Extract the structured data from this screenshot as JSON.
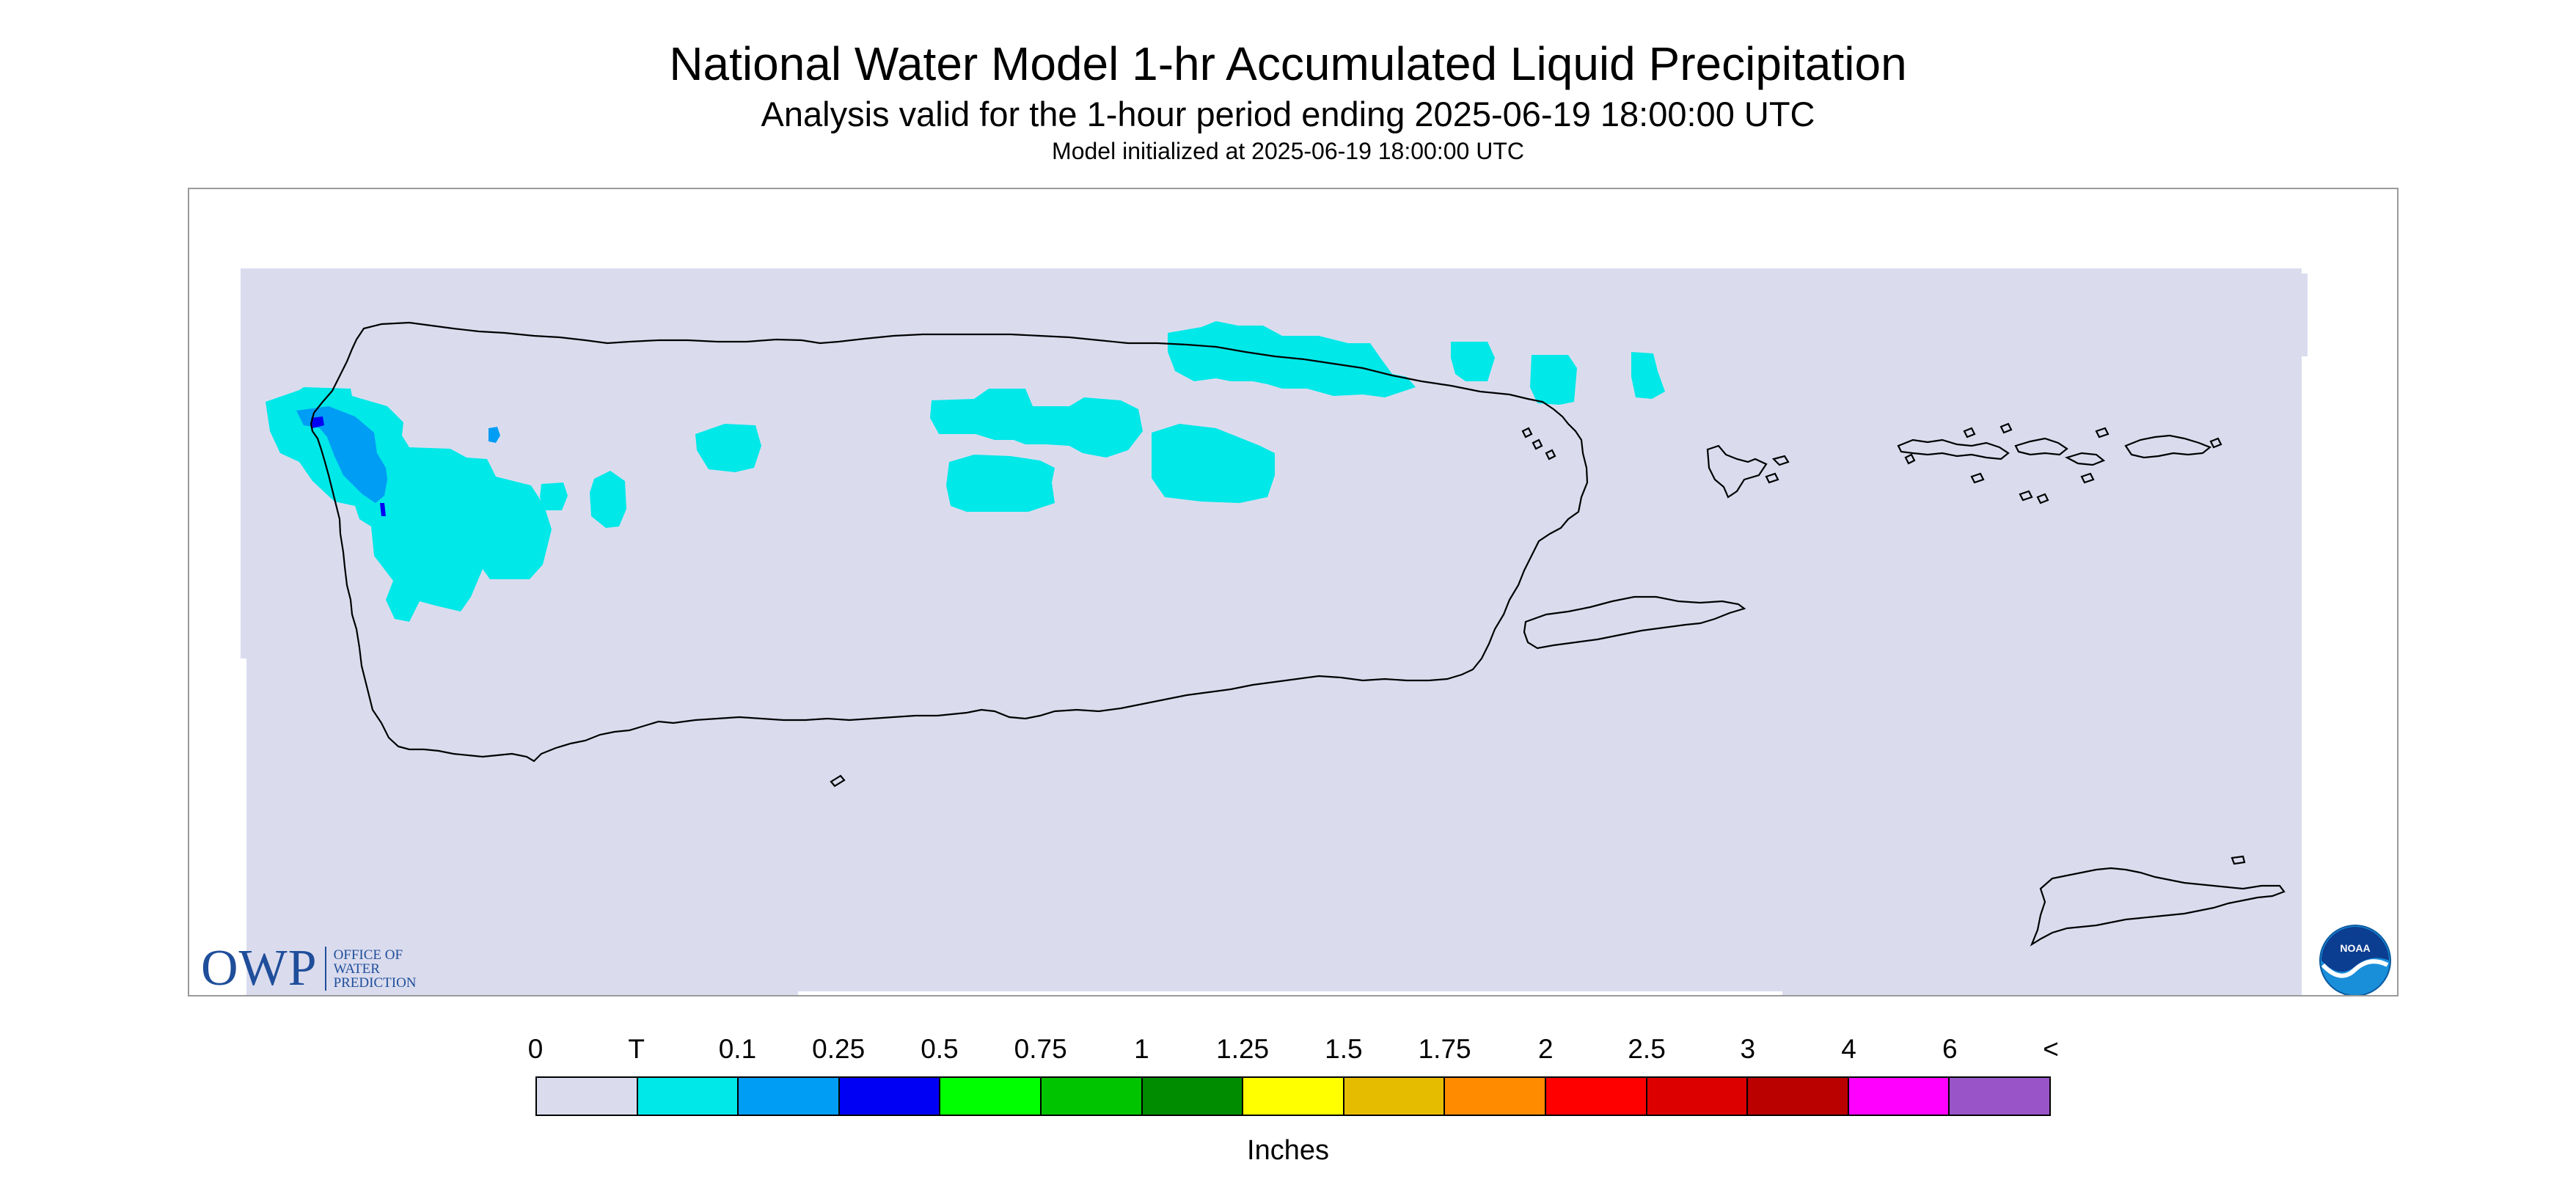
{
  "header": {
    "title": "National Water Model 1-hr Accumulated Liquid Precipitation",
    "subtitle": "Analysis valid for the 1-hour period ending 2025-06-19 18:00:00 UTC",
    "init_line": "Model initialized at 2025-06-19 18:00:00 UTC"
  },
  "map": {
    "background_color": "#dadcee",
    "coastline_color": "#000000",
    "region_shown": "Puerto Rico and U.S. Virgin Islands",
    "precip_cells": [
      {
        "category": "T"
      },
      {
        "category": "T"
      },
      {
        "category": "T"
      },
      {
        "category": "T"
      },
      {
        "category": "0.1"
      },
      {
        "category": "0.25"
      }
    ]
  },
  "logos": {
    "owp_mark": "OWP",
    "owp_line1": "OFFICE OF",
    "owp_line2": "WATER",
    "owp_line3": "PREDICTION",
    "noaa_text": "NOAA"
  },
  "legend": {
    "labels": [
      "0",
      "T",
      "0.1",
      "0.25",
      "0.5",
      "0.75",
      "1",
      "1.25",
      "1.5",
      "1.75",
      "2",
      "2.5",
      "3",
      "4",
      "6",
      "<"
    ],
    "colors": [
      "#dadcee",
      "#00e8e8",
      "#009df4",
      "#0000f4",
      "#00ff00",
      "#00c400",
      "#008c00",
      "#ffff00",
      "#e6bc00",
      "#ff8c00",
      "#ff0000",
      "#dd0000",
      "#bb0000",
      "#ff00ff",
      "#9955c8"
    ],
    "units": "Inches"
  }
}
